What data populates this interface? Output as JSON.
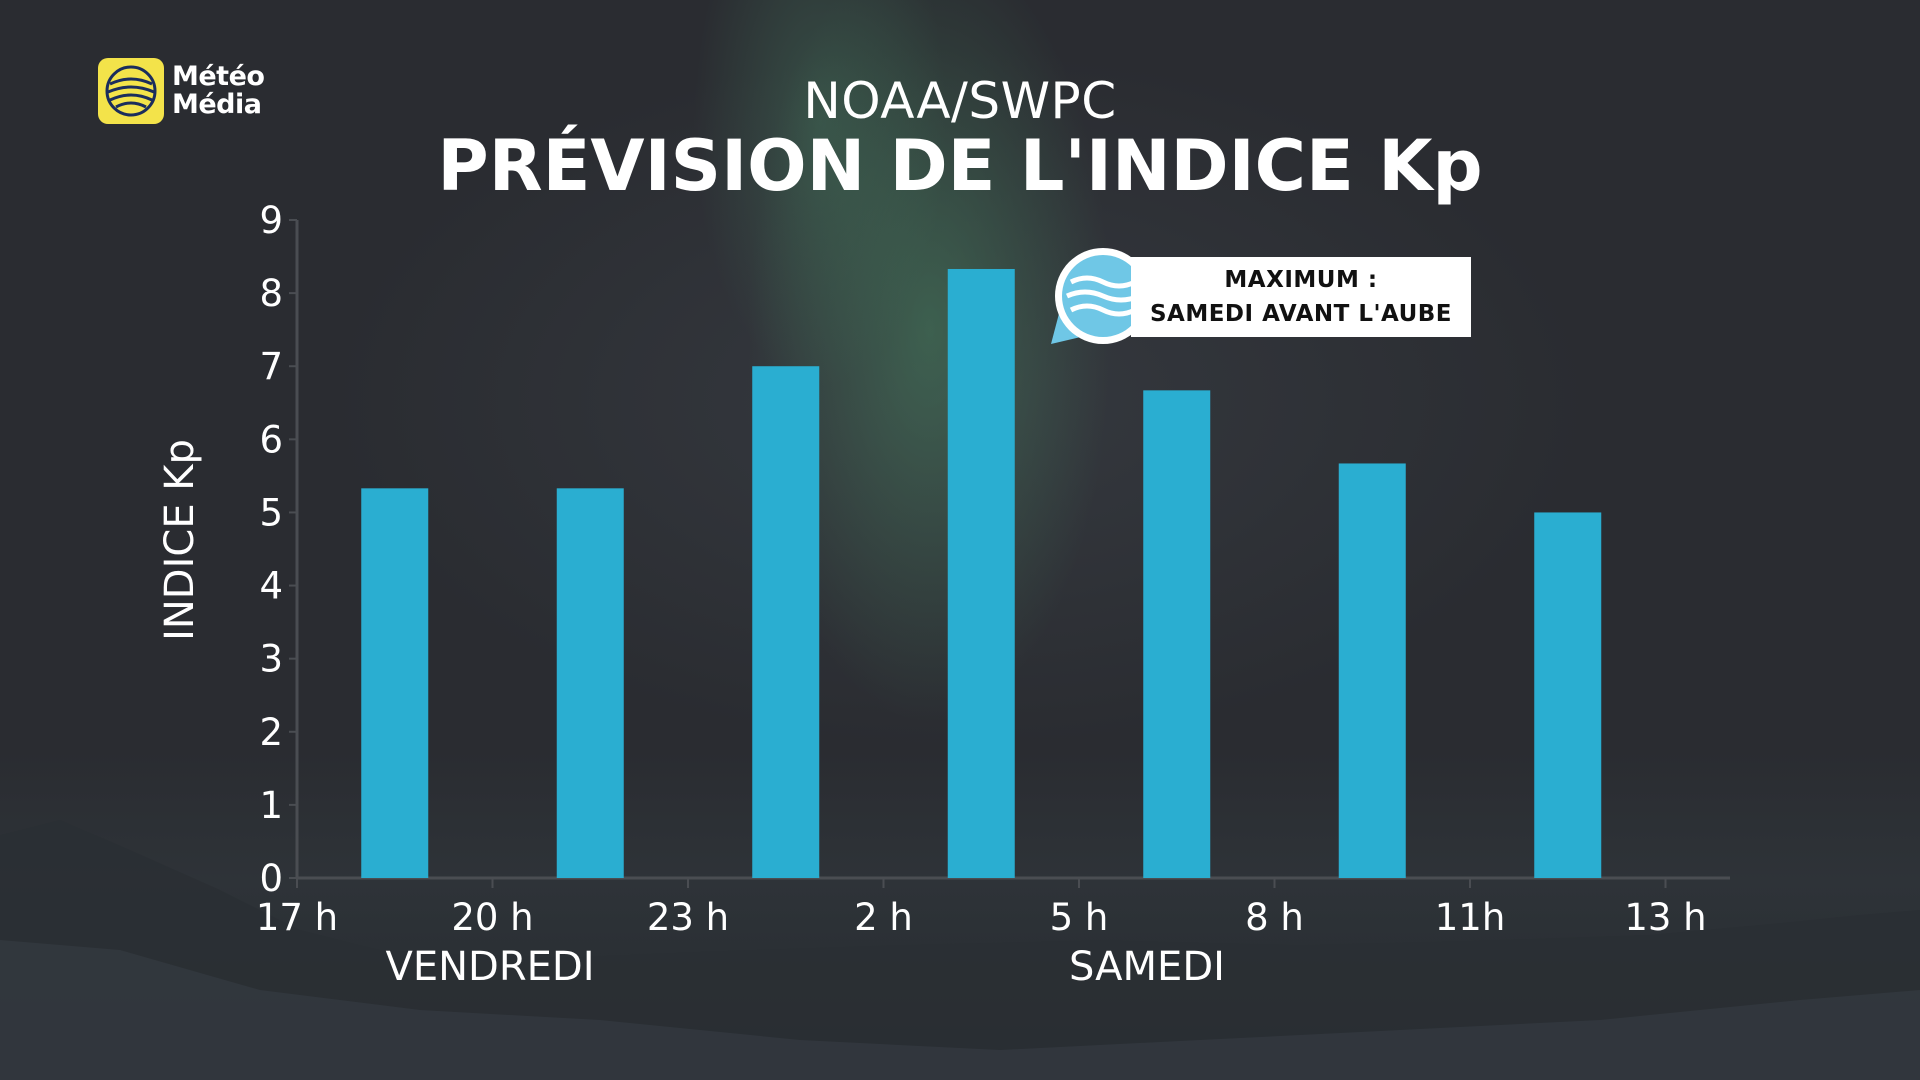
{
  "brand": {
    "line1": "Météo",
    "line2": "Média",
    "color": "#f3e34a"
  },
  "header": {
    "subtitle": "NOAA/SWPC",
    "title": "PRÉVISION DE L'INDICE Kp"
  },
  "callout": {
    "line1": "MAXIMUM :",
    "line2": "SAMEDI AVANT L'AUBE",
    "icon": "waves-icon"
  },
  "chart_data": {
    "type": "bar",
    "ylabel": "INDICE Kp",
    "ylim": [
      0,
      9
    ],
    "yticks": [
      "0",
      "1",
      "2",
      "3",
      "4",
      "5",
      "6",
      "7",
      "8",
      "9"
    ],
    "xtick_labels": [
      "17 h",
      "20 h",
      "23 h",
      "2 h",
      "5 h",
      "8 h",
      "11h",
      "13 h"
    ],
    "day_labels": [
      "VENDREDI",
      "SAMEDI"
    ],
    "values": [
      5.33,
      5.33,
      7.0,
      8.33,
      6.67,
      5.67,
      5.0
    ],
    "bar_color": "#2aaed1",
    "grid": false
  }
}
